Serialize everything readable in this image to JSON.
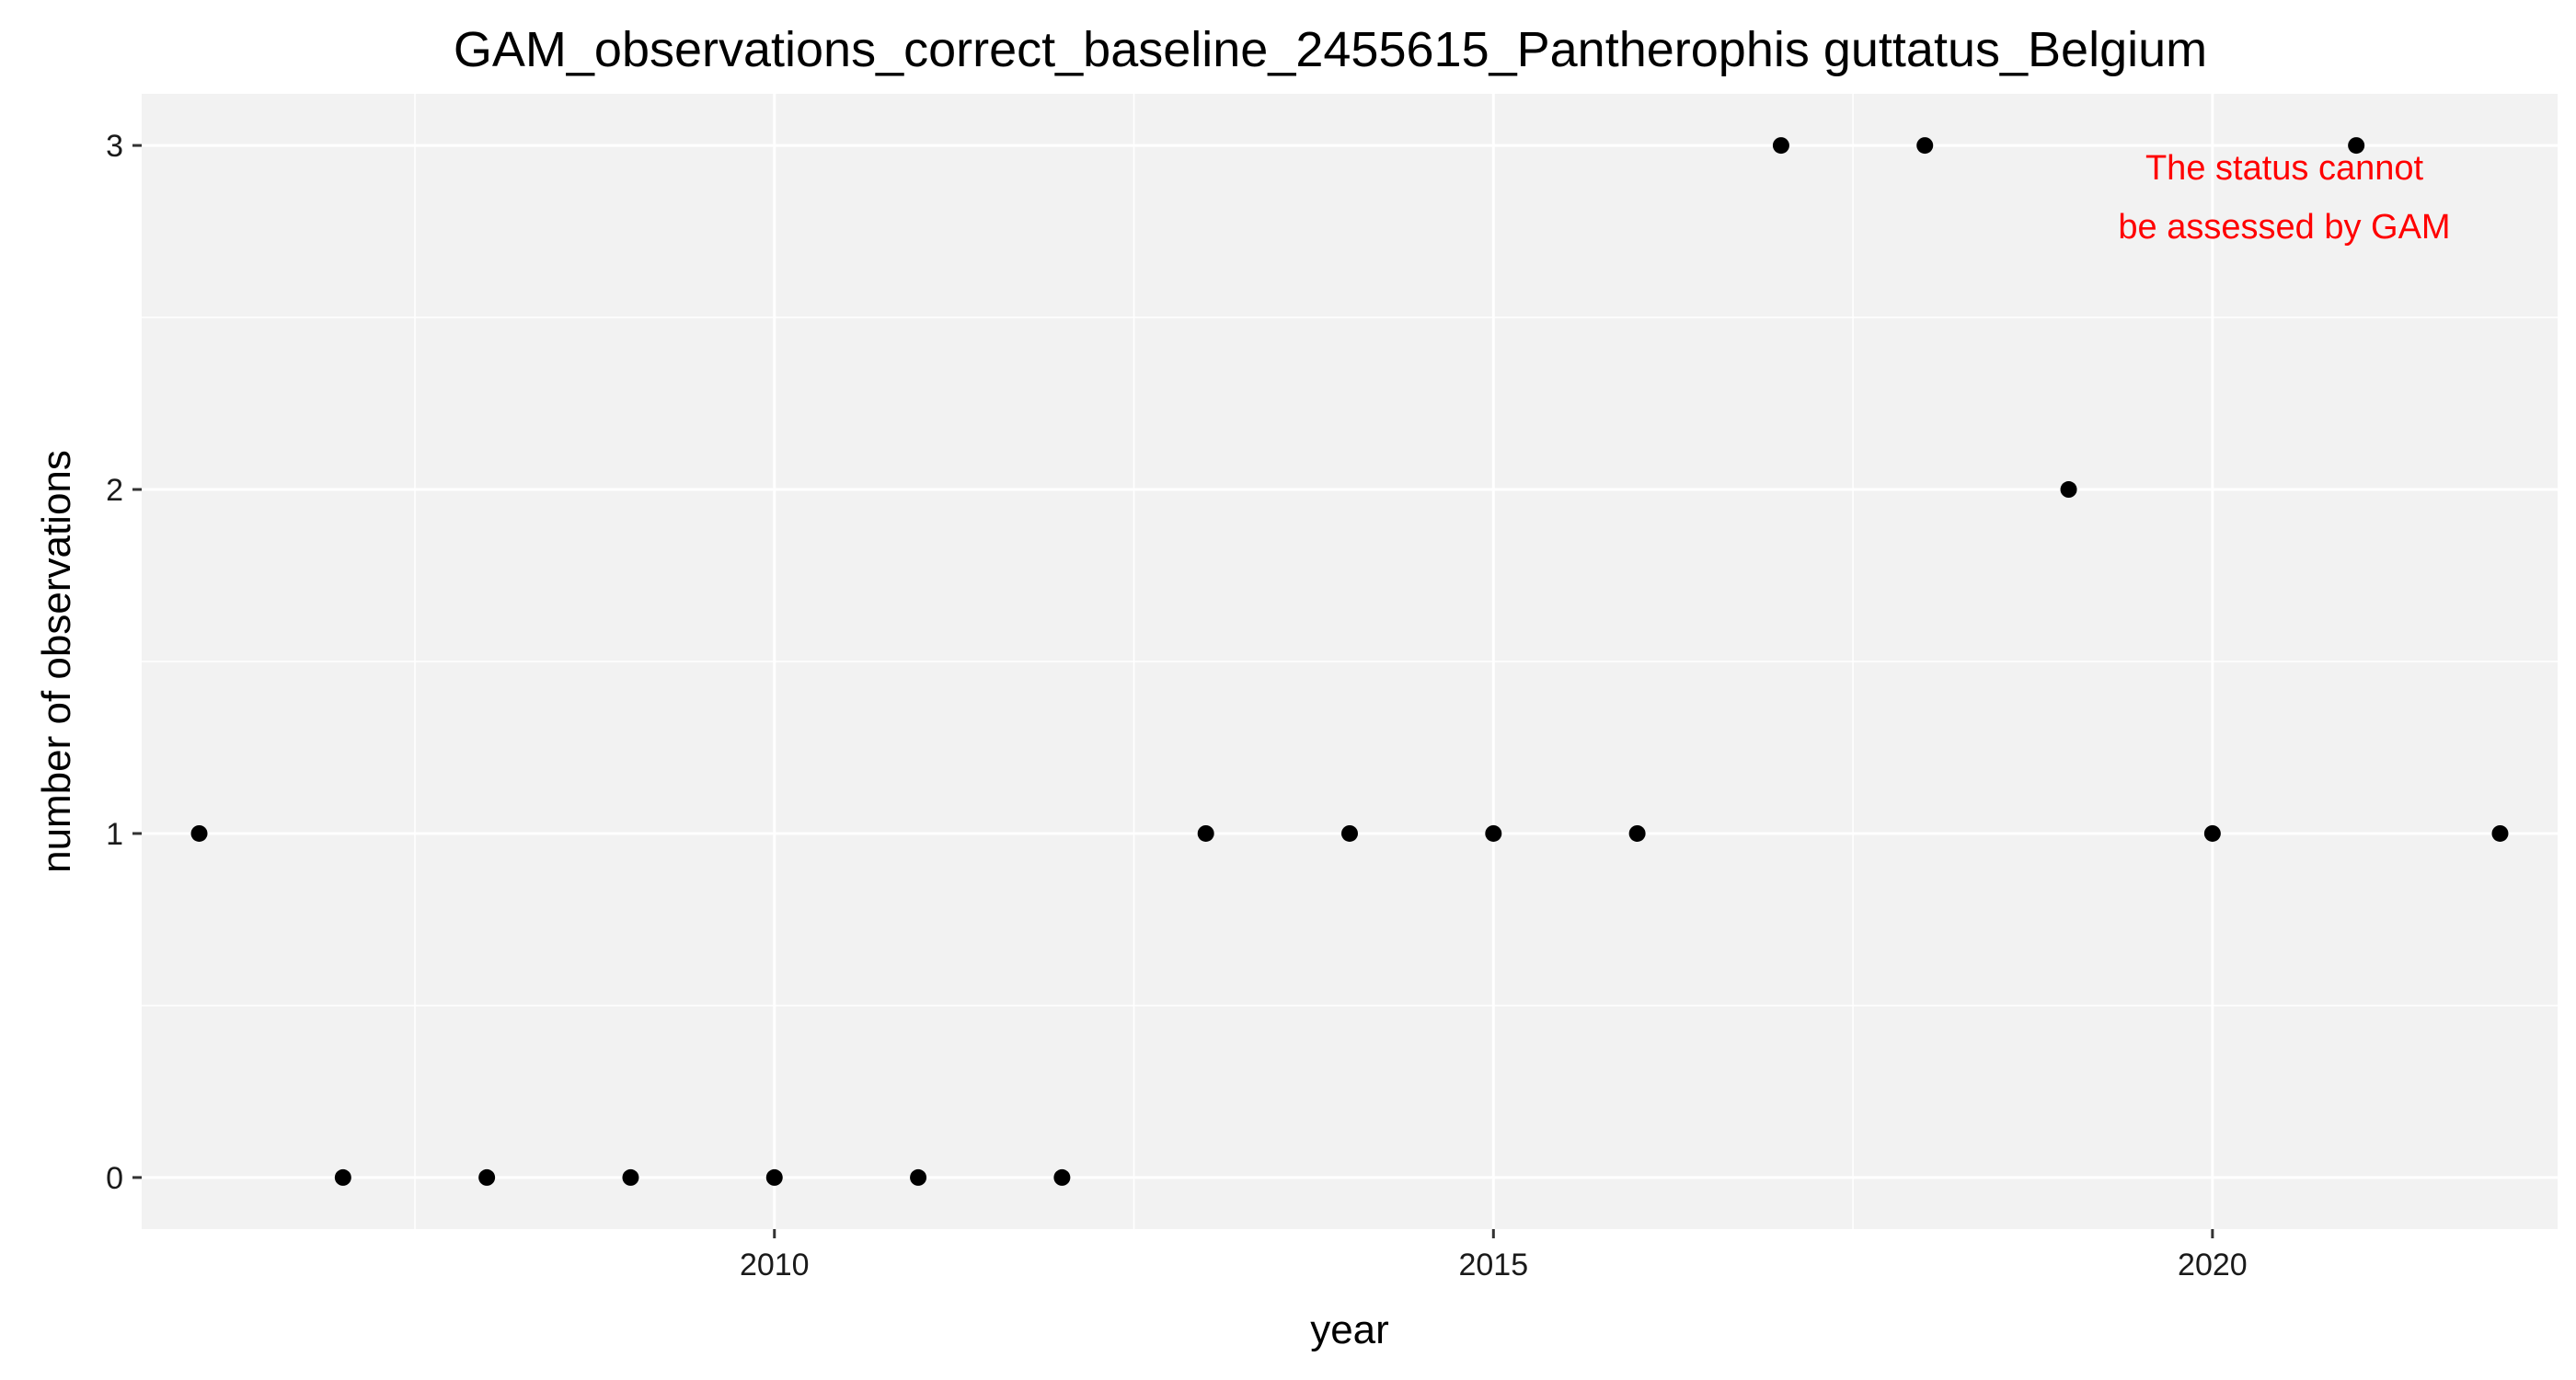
{
  "chart_data": {
    "type": "scatter",
    "title": "GAM_observations_correct_baseline_2455615_Pantherophis guttatus_Belgium",
    "xlabel": "year",
    "ylabel": "number of observations",
    "xlim": [
      2005.6,
      2022.4
    ],
    "ylim": [
      -0.15,
      3.15
    ],
    "x_ticks": [
      2010,
      2015,
      2020
    ],
    "x_tick_labels": [
      "2010",
      "2015",
      "2020"
    ],
    "y_ticks": [
      0,
      1,
      2,
      3
    ],
    "y_tick_labels": [
      "0",
      "1",
      "2",
      "3"
    ],
    "grid": true,
    "legend": "none",
    "colors": {
      "panel_background": "#f2f2f2",
      "grid_major": "#ffffff",
      "grid_minor": "#ffffff",
      "point": "#000000",
      "annotation": "#ff0000"
    },
    "series": [
      {
        "x": [
          2006,
          2007,
          2008,
          2009,
          2010,
          2011,
          2012,
          2013,
          2014,
          2015,
          2016,
          2017,
          2018,
          2019,
          2020,
          2021,
          2022
        ],
        "y": [
          1,
          0,
          0,
          0,
          0,
          0,
          0,
          1,
          1,
          1,
          1,
          3,
          3,
          2,
          1,
          3,
          1
        ]
      }
    ],
    "annotation": {
      "lines": [
        "The status cannot",
        "be assessed by GAM"
      ],
      "x": 2020.5,
      "y": 2.85
    }
  }
}
